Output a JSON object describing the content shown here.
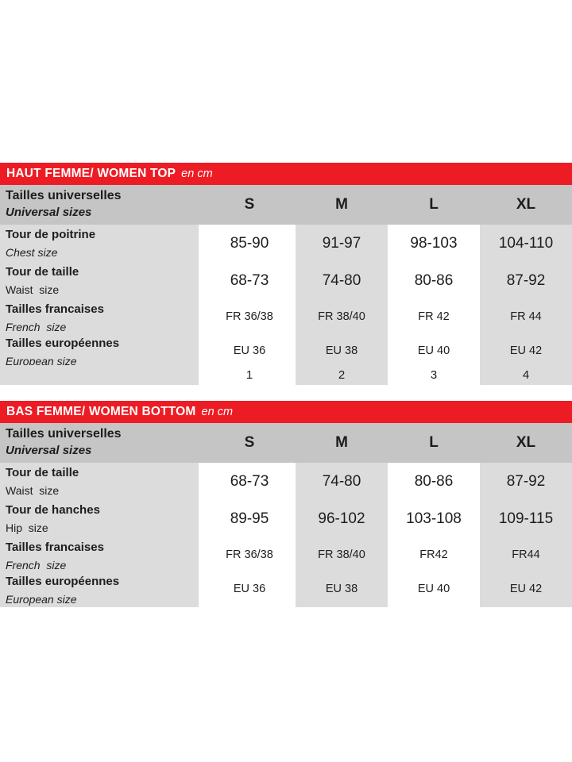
{
  "colors": {
    "accent_red": "#ed1c24",
    "header_gray": "#c5c5c5",
    "cell_gray": "#dcdcdc",
    "text": "#1d1d1b",
    "background": "#ffffff"
  },
  "tables": [
    {
      "title": "HAUT FEMME/ WOMEN TOP",
      "unit": "en cm",
      "header": {
        "label_fr": "Tailles universelles",
        "label_en": "Universal sizes",
        "sizes": [
          "S",
          "M",
          "L",
          "XL"
        ]
      },
      "rows": [
        {
          "fr": "Tour de poitrine",
          "en": "Chest size",
          "en_style": "italic",
          "kind": "cm",
          "values": [
            "85-90",
            "91-97",
            "98-103",
            "104-110"
          ]
        },
        {
          "fr": "Tour de taille",
          "en": "Waist  size",
          "en_style": "normal",
          "kind": "cm",
          "values": [
            "68-73",
            "74-80",
            "80-86",
            "87-92"
          ]
        },
        {
          "fr": "Tailles francaises",
          "en": "French  size",
          "en_style": "italic",
          "kind": "fr",
          "values": [
            "FR 36/38",
            "FR 38/40",
            "FR 42",
            "FR 44"
          ]
        },
        {
          "fr": "Tailles européennes",
          "en": "European size",
          "en_style": "italic",
          "kind": "eu",
          "values": [
            "EU 36",
            "EU 38",
            "EU 40",
            "EU 42"
          ]
        },
        {
          "fr": "",
          "en": "",
          "en_style": "normal",
          "kind": "num",
          "values": [
            "1",
            "2",
            "3",
            "4"
          ]
        }
      ]
    },
    {
      "title": "BAS FEMME/ WOMEN BOTTOM",
      "unit": "en cm",
      "header": {
        "label_fr": "Tailles universelles",
        "label_en": "Universal sizes",
        "sizes": [
          "S",
          "M",
          "L",
          "XL"
        ]
      },
      "rows": [
        {
          "fr": "Tour de taille",
          "en": "Waist  size",
          "en_style": "normal",
          "kind": "cm",
          "values": [
            "68-73",
            "74-80",
            "80-86",
            "87-92"
          ]
        },
        {
          "fr": "Tour de hanches",
          "en": "Hip  size",
          "en_style": "normal",
          "kind": "cm",
          "values": [
            "89-95",
            "96-102",
            "103-108",
            "109-115"
          ]
        },
        {
          "fr": "Tailles francaises",
          "en": "French  size",
          "en_style": "italic",
          "kind": "fr",
          "values": [
            "FR 36/38",
            "FR 38/40",
            "FR42",
            "FR44"
          ]
        },
        {
          "fr": "Tailles européennes",
          "en": "European size",
          "en_style": "italic",
          "kind": "eu",
          "values": [
            "EU 36",
            "EU 38",
            "EU 40",
            "EU 42"
          ]
        }
      ]
    }
  ]
}
